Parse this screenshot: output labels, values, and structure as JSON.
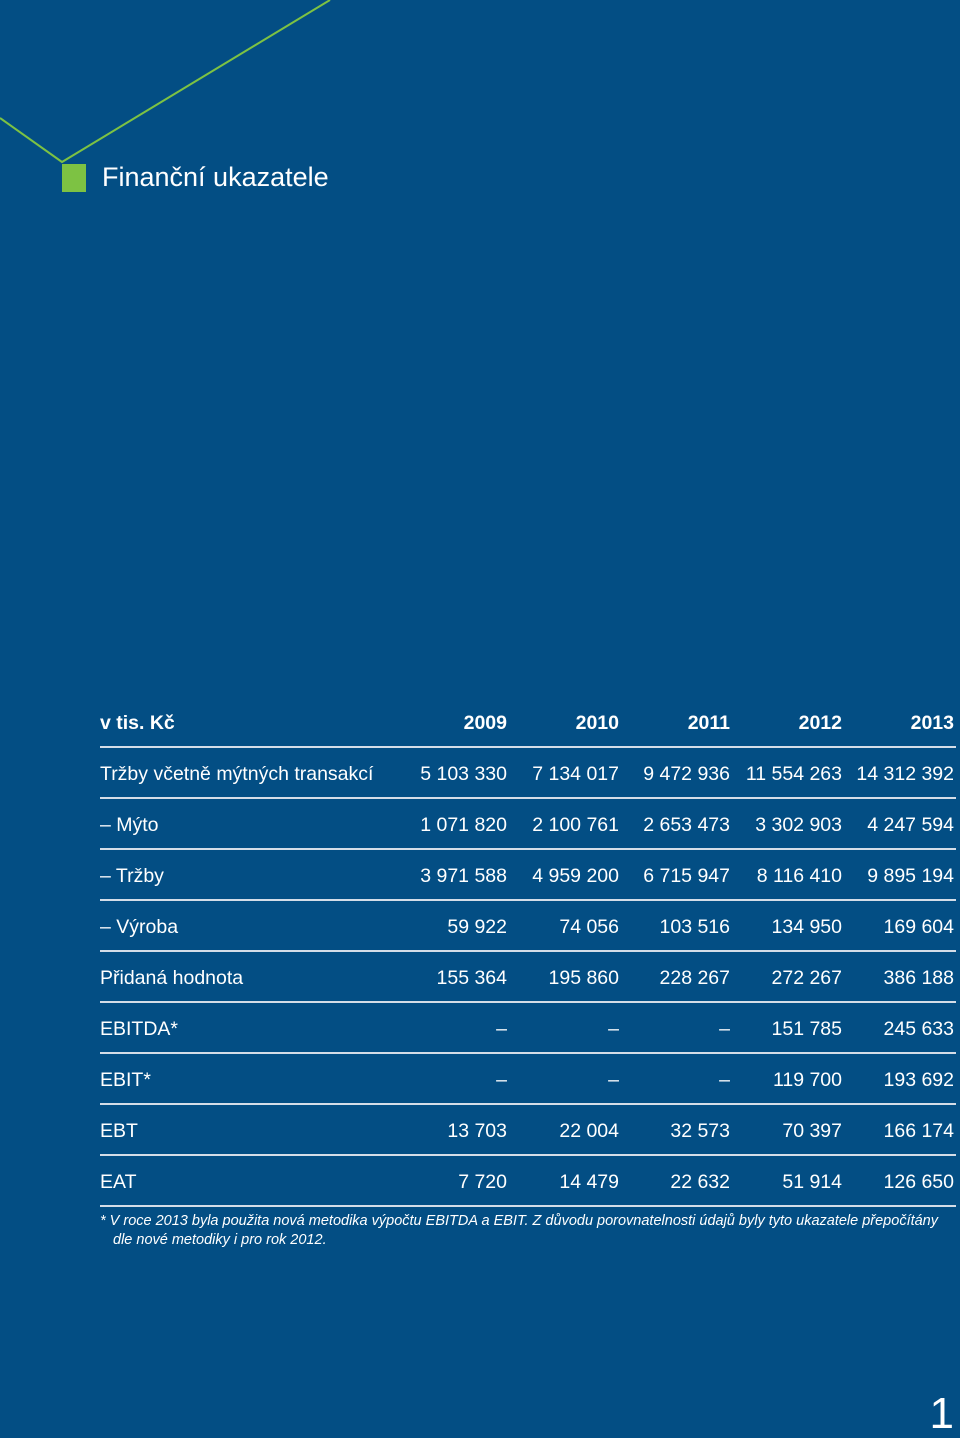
{
  "header": {
    "title": "Finanční ukazatele"
  },
  "table": {
    "unit_label": "v tis. Kč",
    "years": [
      "2009",
      "2010",
      "2011",
      "2012",
      "2013"
    ],
    "rows": [
      {
        "label": "Tržby včetně mýtných transakcí",
        "values": [
          "5 103 330",
          "7 134 017",
          "9 472 936",
          "11 554 263",
          "14 312 392"
        ]
      },
      {
        "label": "– Mýto",
        "values": [
          "1 071 820",
          "2 100 761",
          "2 653 473",
          "3 302 903",
          "4 247 594"
        ]
      },
      {
        "label": "– Tržby",
        "values": [
          "3 971 588",
          "4 959 200",
          "6 715 947",
          "8 116 410",
          "9 895 194"
        ]
      },
      {
        "label": "– Výroba",
        "values": [
          "59 922",
          "74 056",
          "103 516",
          "134 950",
          "169 604"
        ]
      },
      {
        "label": "Přidaná hodnota",
        "values": [
          "155 364",
          "195 860",
          "228 267",
          "272 267",
          "386 188"
        ]
      },
      {
        "label": "EBITDA*",
        "values": [
          "–",
          "–",
          "–",
          "151 785",
          "245 633"
        ]
      },
      {
        "label": "EBIT*",
        "values": [
          "–",
          "–",
          "–",
          "119 700",
          "193 692"
        ]
      },
      {
        "label": "EBT",
        "values": [
          "13 703",
          "22 004",
          "32 573",
          "70 397",
          "166 174"
        ]
      },
      {
        "label": "EAT",
        "values": [
          "7 720",
          "14 479",
          "22 632",
          "51 914",
          "126 650"
        ]
      }
    ]
  },
  "footnote": {
    "line1": "* V roce 2013 byla použita nová metodika výpočtu EBITDA a EBIT. Z důvodu porovnatelnosti údajů byly tyto ukazatele přepočítány",
    "line2": "dle nové metodiky i pro rok 2012."
  },
  "page_number": "1",
  "colors": {
    "background": "#034e84",
    "accent": "#7dc243",
    "rule": "#d4dde8"
  }
}
